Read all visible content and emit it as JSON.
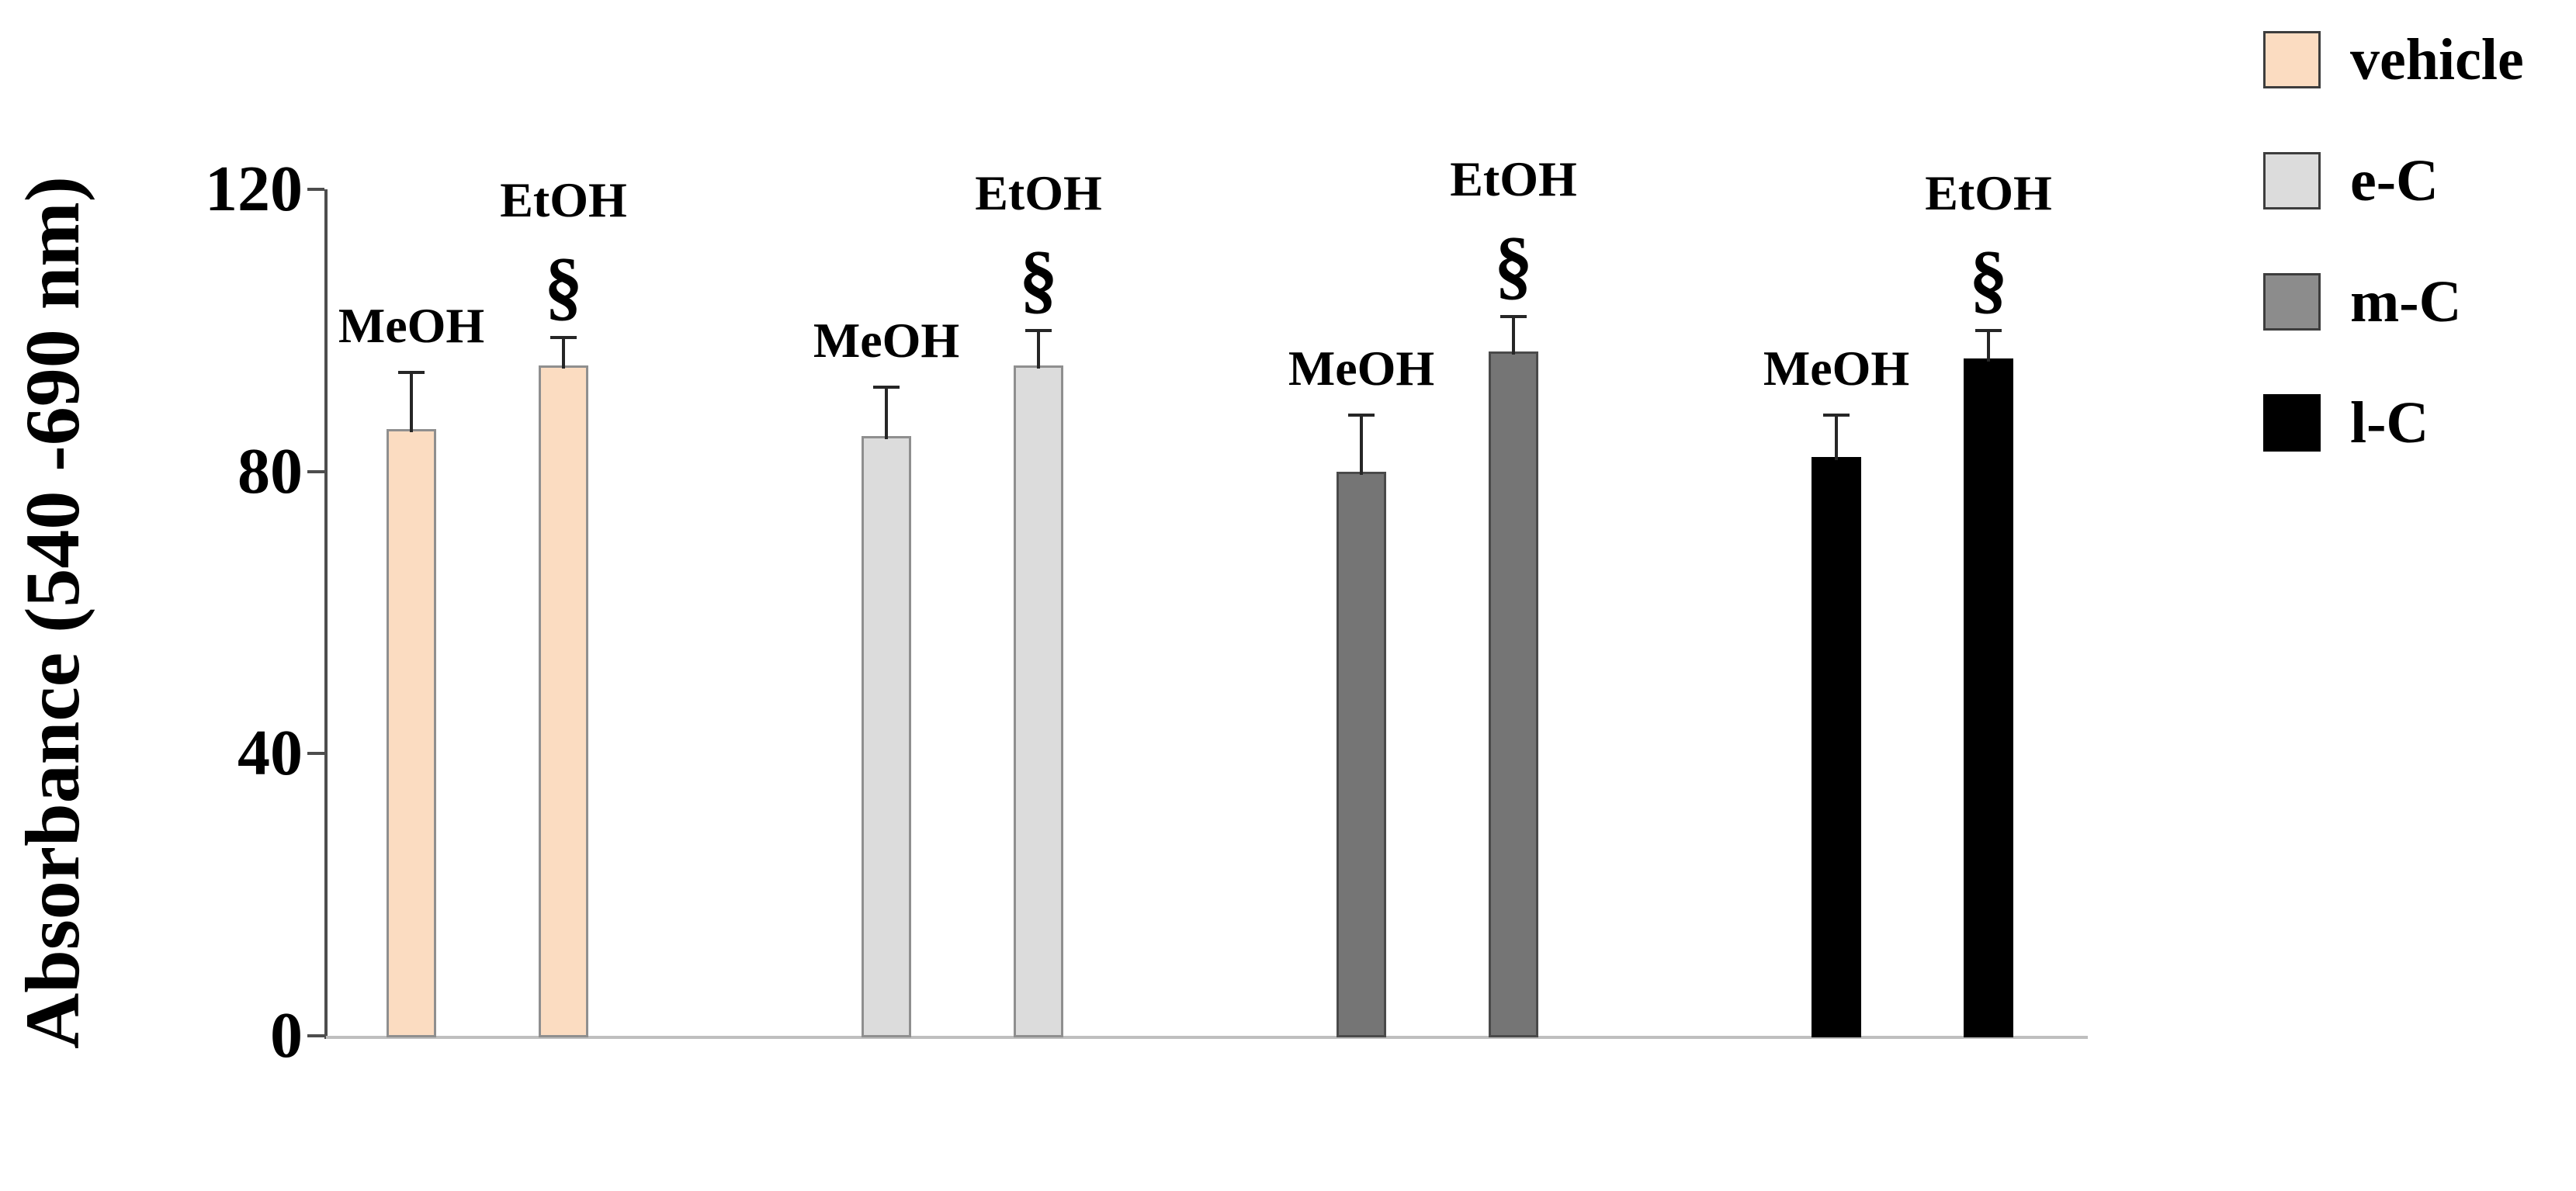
{
  "chart_data": {
    "type": "bar",
    "title": "",
    "ylabel": "Absorbance (540 -690 nm)",
    "xlabel": "",
    "ylim": [
      0,
      120
    ],
    "yticks": [
      0,
      40,
      80,
      120
    ],
    "grid": false,
    "legend_position": "top-right",
    "bar_labels": [
      "MeOH",
      "EtOH"
    ],
    "significance_symbol": "§",
    "groups": [
      {
        "name": "vehicle",
        "fill": "#fbdcc1",
        "border": "#8f8f8f",
        "bars": [
          {
            "label": "MeOH",
            "value": 86,
            "error": 8,
            "annotation": ""
          },
          {
            "label": "EtOH",
            "value": 95,
            "error": 4,
            "annotation": "§"
          }
        ]
      },
      {
        "name": "e-C",
        "fill": "#dcdcdc",
        "border": "#8f8f8f",
        "bars": [
          {
            "label": "MeOH",
            "value": 85,
            "error": 7,
            "annotation": ""
          },
          {
            "label": "EtOH",
            "value": 95,
            "error": 5,
            "annotation": "§"
          }
        ]
      },
      {
        "name": "m-C",
        "fill": "#757575",
        "border": "#4a4a4a",
        "bars": [
          {
            "label": "MeOH",
            "value": 80,
            "error": 8,
            "annotation": ""
          },
          {
            "label": "EtOH",
            "value": 97,
            "error": 5,
            "annotation": "§"
          }
        ]
      },
      {
        "name": "l-C",
        "fill": "#000000",
        "border": "#000000",
        "bars": [
          {
            "label": "MeOH",
            "value": 82,
            "error": 6,
            "annotation": ""
          },
          {
            "label": "EtOH",
            "value": 96,
            "error": 4,
            "annotation": "§"
          }
        ]
      }
    ],
    "legend": [
      {
        "label": "vehicle",
        "color": "#fbdcc1"
      },
      {
        "label": "e-C",
        "color": "#dcdcdc"
      },
      {
        "label": "m-C",
        "color": "#8c8c8c"
      },
      {
        "label": "l-C",
        "color": "#000000"
      }
    ]
  }
}
